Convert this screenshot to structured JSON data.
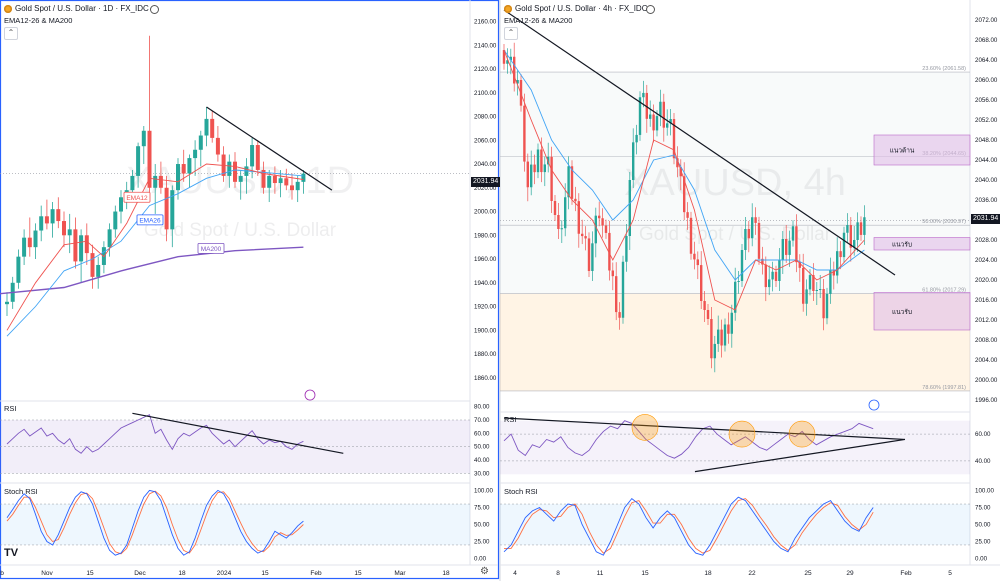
{
  "left": {
    "title": "Gold Spot / U.S. Dollar · 1D · FX_IDC",
    "indicator": "EMA12-26 & MA200",
    "watermark_symbol": "XAUUSD, 1D",
    "watermark_name": "Gold Spot / U.S. Dollar",
    "price_badge": "2031.94",
    "ema12_label": "EMA12",
    "ema26_label": "EMA26",
    "ma200_label": "MA200",
    "rsi_label": "RSI",
    "stoch_label": "Stoch RSI",
    "logo_text": "TV"
  },
  "right": {
    "title": "Gold Spot / U.S. Dollar · 4h · FX_IDC",
    "indicator": "EMA12-26 & MA200",
    "watermark_symbol": "XAUUSD, 4h",
    "watermark_name": "Gold Spot / U.S. Dollar",
    "price_badge": "2031.94",
    "zone_resistance": "แนวต้าน",
    "zone_support1": "แนวรับ",
    "zone_support2": "แนวรับ",
    "fib_236": "23.60% (2061.58)",
    "fib_382": "38.20% (2044.65)",
    "fib_500": "50.00% (2030.97)",
    "fib_618": "61.80% (2017.29)",
    "fib_786": "78.60% (1997.81)",
    "rsi_label": "RSI",
    "stoch_label": "Stoch RSI"
  },
  "chart_data": [
    {
      "type": "candlestick",
      "name_shown": "Gold Spot / U.S. Dollar · 1D · FX_IDC",
      "x_ticks": [
        "b",
        "Nov",
        "15",
        "Dec",
        "18",
        "2024",
        "15",
        "Feb",
        "15",
        "Mar",
        "18"
      ],
      "y_ticks": [
        1860,
        1880,
        1900,
        1920,
        1940,
        1960,
        1980,
        2000,
        2020,
        2040,
        2060,
        2080,
        2100,
        2120,
        2140,
        2160
      ],
      "ylim": [
        1843,
        2168
      ],
      "last_price": 2031.94,
      "ohlc": [
        [
          1922,
          1932,
          1912,
          1924
        ],
        [
          1924,
          1945,
          1918,
          1940
        ],
        [
          1940,
          1968,
          1935,
          1962
        ],
        [
          1962,
          1985,
          1955,
          1978
        ],
        [
          1978,
          1995,
          1962,
          1970
        ],
        [
          1970,
          1990,
          1960,
          1984
        ],
        [
          1984,
          2005,
          1975,
          1996
        ],
        [
          1996,
          2010,
          1985,
          1990
        ],
        [
          1990,
          2008,
          1978,
          2002
        ],
        [
          2002,
          2012,
          1986,
          1992
        ],
        [
          1992,
          2000,
          1970,
          1980
        ],
        [
          1980,
          1998,
          1965,
          1985
        ],
        [
          1985,
          1995,
          1952,
          1958
        ],
        [
          1958,
          1985,
          1940,
          1980
        ],
        [
          1980,
          1990,
          1955,
          1965
        ],
        [
          1965,
          1972,
          1935,
          1945
        ],
        [
          1945,
          1962,
          1935,
          1955
        ],
        [
          1955,
          1975,
          1948,
          1970
        ],
        [
          1970,
          1990,
          1962,
          1985
        ],
        [
          1985,
          2005,
          1978,
          2000
        ],
        [
          2000,
          2018,
          1990,
          2012
        ],
        [
          2012,
          2025,
          2002,
          2018
        ],
        [
          2018,
          2035,
          2010,
          2030
        ],
        [
          2030,
          2058,
          2020,
          2055
        ],
        [
          2055,
          2072,
          2040,
          2068
        ],
        [
          2068,
          2148,
          2010,
          2020
        ],
        [
          2020,
          2040,
          1998,
          2030
        ],
        [
          2030,
          2042,
          2015,
          2020
        ],
        [
          2020,
          2030,
          1975,
          1985
        ],
        [
          1985,
          2022,
          1970,
          2018
        ],
        [
          2018,
          2045,
          2010,
          2040
        ],
        [
          2040,
          2052,
          2025,
          2032
        ],
        [
          2032,
          2048,
          2020,
          2045
        ],
        [
          2045,
          2060,
          2030,
          2052
        ],
        [
          2052,
          2068,
          2038,
          2064
        ],
        [
          2064,
          2088,
          2055,
          2078
        ],
        [
          2078,
          2085,
          2058,
          2062
        ],
        [
          2062,
          2072,
          2042,
          2048
        ],
        [
          2048,
          2055,
          2025,
          2030
        ],
        [
          2030,
          2048,
          2020,
          2042
        ],
        [
          2042,
          2050,
          2020,
          2025
        ],
        [
          2025,
          2035,
          2010,
          2030
        ],
        [
          2030,
          2045,
          2015,
          2038
        ],
        [
          2038,
          2062,
          2028,
          2056
        ],
        [
          2056,
          2060,
          2030,
          2035
        ],
        [
          2035,
          2042,
          2015,
          2020
        ],
        [
          2020,
          2035,
          2008,
          2030
        ],
        [
          2030,
          2038,
          2015,
          2024
        ],
        [
          2024,
          2035,
          2012,
          2028
        ],
        [
          2028,
          2036,
          2018,
          2022
        ],
        [
          2022,
          2032,
          2010,
          2018
        ],
        [
          2018,
          2030,
          2008,
          2025
        ],
        [
          2025,
          2035,
          2015,
          2031.94
        ]
      ],
      "ema12_path": [
        [
          0,
          1900
        ],
        [
          5,
          1940
        ],
        [
          10,
          1972
        ],
        [
          14,
          1975
        ],
        [
          17,
          1962
        ],
        [
          21,
          1990
        ],
        [
          25,
          2028
        ],
        [
          30,
          2025
        ],
        [
          35,
          2040
        ],
        [
          40,
          2038
        ],
        [
          45,
          2032
        ],
        [
          52,
          2027
        ]
      ],
      "ema26_path": [
        [
          0,
          1895
        ],
        [
          5,
          1920
        ],
        [
          10,
          1950
        ],
        [
          15,
          1960
        ],
        [
          20,
          1975
        ],
        [
          25,
          2005
        ],
        [
          30,
          2015
        ],
        [
          35,
          2028
        ],
        [
          40,
          2035
        ],
        [
          45,
          2033
        ],
        [
          52,
          2030
        ]
      ],
      "ma200_path": [
        [
          -3,
          1930
        ],
        [
          10,
          1936
        ],
        [
          20,
          1950
        ],
        [
          30,
          1962
        ],
        [
          40,
          1967
        ],
        [
          52,
          1970
        ]
      ],
      "trendline": [
        [
          35,
          2088
        ],
        [
          57,
          2018
        ]
      ],
      "rsi": {
        "y_ticks": [
          30,
          40,
          50,
          60,
          70,
          80
        ],
        "band": [
          30,
          70
        ],
        "values": [
          52,
          56,
          60,
          63,
          58,
          61,
          64,
          58,
          60,
          55,
          52,
          56,
          48,
          45,
          50,
          46,
          48,
          52,
          56,
          60,
          64,
          66,
          68,
          70,
          72,
          74,
          60,
          63,
          55,
          48,
          56,
          60,
          58,
          61,
          64,
          66,
          60,
          56,
          52,
          55,
          50,
          54,
          58,
          62,
          56,
          52,
          55,
          53,
          54,
          50,
          48,
          52,
          54
        ],
        "trendline": [
          [
            22,
            75
          ],
          [
            59,
            45
          ]
        ]
      },
      "stoch_rsi": {
        "y_ticks": [
          0.0,
          25.0,
          50.0,
          75.0,
          100.0
        ],
        "band": [
          20,
          80
        ],
        "k": [
          60,
          72,
          85,
          95,
          88,
          65,
          40,
          25,
          20,
          35,
          55,
          75,
          90,
          98,
          95,
          80,
          55,
          30,
          12,
          5,
          8,
          20,
          45,
          70,
          90,
          100,
          98,
          85,
          60,
          35,
          15,
          5,
          10,
          30,
          55,
          78,
          92,
          100,
          95,
          80,
          60,
          40,
          25,
          15,
          8,
          12,
          25,
          40,
          35,
          30,
          38,
          48,
          55
        ],
        "d": [
          55,
          65,
          78,
          90,
          90,
          75,
          55,
          35,
          25,
          28,
          45,
          65,
          82,
          94,
          96,
          88,
          68,
          45,
          22,
          10,
          7,
          15,
          35,
          58,
          80,
          95,
          99,
          92,
          75,
          50,
          28,
          12,
          8,
          20,
          42,
          65,
          85,
          97,
          98,
          88,
          70,
          52,
          35,
          22,
          12,
          10,
          18,
          32,
          38,
          34,
          35,
          42,
          50
        ]
      }
    },
    {
      "type": "candlestick",
      "name_shown": "Gold Spot / U.S. Dollar · 4h · FX_IDC",
      "x_ticks": [
        "4",
        "8",
        "11",
        "15",
        "18",
        "22",
        "25",
        "29",
        "Feb",
        "5"
      ],
      "y_ticks": [
        1996,
        2000,
        2004,
        2008,
        2012,
        2016,
        2020,
        2024,
        2028,
        2032,
        2036,
        2040,
        2044,
        2048,
        2052,
        2056,
        2060,
        2064,
        2068,
        2072
      ],
      "ylim": [
        1994,
        2074
      ],
      "last_price": 2031.94,
      "fib_levels": [
        {
          "label": "23.60% (2061.58)",
          "value": 2061.58
        },
        {
          "label": "38.20% (2044.65)",
          "value": 2044.65
        },
        {
          "label": "50.00% (2030.97)",
          "value": 2030.97
        },
        {
          "label": "61.80% (2017.29)",
          "value": 2017.29
        },
        {
          "label": "78.60% (1997.81)",
          "value": 1997.81
        }
      ],
      "zones": [
        {
          "label": "แนวต้าน",
          "from": 2043,
          "to": 2049
        },
        {
          "label": "แนวรับ",
          "from": 2026,
          "to": 2028.5
        },
        {
          "label": "แนวรับ",
          "from": 2010,
          "to": 2017.5
        }
      ],
      "trendline": [
        [
          0,
          2074
        ],
        [
          115,
          2021
        ]
      ],
      "close_path": [
        [
          0,
          2066
        ],
        [
          4,
          2060
        ],
        [
          7,
          2038
        ],
        [
          10,
          2045
        ],
        [
          13,
          2043
        ],
        [
          16,
          2028
        ],
        [
          19,
          2040
        ],
        [
          22,
          2032
        ],
        [
          25,
          2024
        ],
        [
          28,
          2034
        ],
        [
          31,
          2023
        ],
        [
          34,
          2013
        ],
        [
          37,
          2040
        ],
        [
          40,
          2056
        ],
        [
          43,
          2052
        ],
        [
          46,
          2054
        ],
        [
          49,
          2050
        ],
        [
          52,
          2038
        ],
        [
          55,
          2028
        ],
        [
          58,
          2018
        ],
        [
          61,
          2006
        ],
        [
          64,
          2008
        ],
        [
          67,
          2014
        ],
        [
          70,
          2026
        ],
        [
          73,
          2032
        ],
        [
          76,
          2022
        ],
        [
          79,
          2020
        ],
        [
          82,
          2026
        ],
        [
          85,
          2028
        ],
        [
          88,
          2018
        ],
        [
          91,
          2020
        ],
        [
          94,
          2014
        ],
        [
          97,
          2022
        ],
        [
          100,
          2030
        ],
        [
          103,
          2028
        ],
        [
          106,
          2032
        ]
      ],
      "ema12_path": [
        [
          0,
          2066
        ],
        [
          8,
          2052
        ],
        [
          14,
          2042
        ],
        [
          20,
          2036
        ],
        [
          26,
          2032
        ],
        [
          32,
          2024
        ],
        [
          38,
          2032
        ],
        [
          44,
          2048
        ],
        [
          50,
          2046
        ],
        [
          56,
          2034
        ],
        [
          62,
          2016
        ],
        [
          68,
          2014
        ],
        [
          74,
          2024
        ],
        [
          80,
          2022
        ],
        [
          86,
          2024
        ],
        [
          92,
          2020
        ],
        [
          98,
          2022
        ],
        [
          106,
          2028
        ]
      ],
      "ema26_path": [
        [
          0,
          2066
        ],
        [
          8,
          2058
        ],
        [
          14,
          2048
        ],
        [
          20,
          2042
        ],
        [
          26,
          2038
        ],
        [
          32,
          2032
        ],
        [
          38,
          2036
        ],
        [
          44,
          2044
        ],
        [
          50,
          2045
        ],
        [
          56,
          2038
        ],
        [
          62,
          2026
        ],
        [
          68,
          2020
        ],
        [
          74,
          2024
        ],
        [
          80,
          2024
        ],
        [
          86,
          2024
        ],
        [
          92,
          2022
        ],
        [
          98,
          2022
        ],
        [
          106,
          2026
        ]
      ],
      "rsi": {
        "y_ticks": [
          40.0,
          60.0
        ],
        "values": [
          55,
          60,
          48,
          44,
          52,
          50,
          56,
          54,
          58,
          50,
          46,
          44,
          48,
          56,
          62,
          66,
          64,
          70,
          68,
          62,
          56,
          52,
          48,
          44,
          42,
          45,
          50,
          58,
          64,
          66,
          60,
          56,
          52,
          55,
          58,
          54,
          50,
          48,
          52,
          56,
          60,
          58,
          62,
          56,
          52,
          55,
          58,
          60,
          62,
          64,
          68,
          66,
          64
        ],
        "trendline_upper": [
          [
            0,
            72
          ],
          [
            105,
            56
          ]
        ],
        "trendline_lower": [
          [
            50,
            32
          ],
          [
            105,
            56
          ]
        ]
      },
      "stoch_rsi": {
        "y_ticks": [
          0.0,
          25.0,
          50.0,
          75.0,
          100.0
        ],
        "band": [
          20,
          80
        ],
        "k": [
          10,
          20,
          40,
          60,
          70,
          75,
          65,
          55,
          70,
          80,
          78,
          50,
          30,
          10,
          5,
          25,
          50,
          75,
          88,
          80,
          60,
          45,
          60,
          70,
          60,
          40,
          20,
          8,
          5,
          20,
          40,
          60,
          80,
          90,
          85,
          70,
          55,
          40,
          25,
          15,
          10,
          30,
          45,
          60,
          70,
          80,
          85,
          70,
          55,
          45,
          40,
          60,
          75
        ],
        "d": [
          15,
          15,
          30,
          50,
          65,
          72,
          70,
          60,
          62,
          75,
          80,
          65,
          40,
          20,
          8,
          15,
          38,
          62,
          82,
          85,
          70,
          52,
          52,
          65,
          65,
          50,
          30,
          15,
          8,
          12,
          30,
          50,
          70,
          85,
          88,
          78,
          62,
          48,
          32,
          20,
          12,
          20,
          38,
          52,
          65,
          75,
          82,
          78,
          62,
          50,
          42,
          50,
          68
        ]
      }
    }
  ]
}
